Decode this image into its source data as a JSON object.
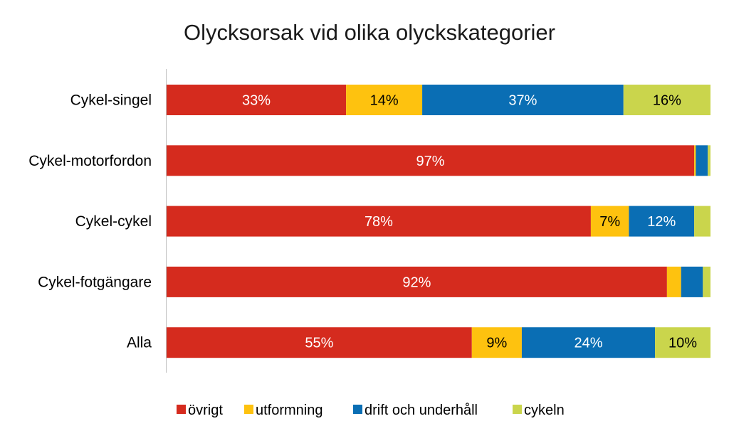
{
  "chart_data": {
    "type": "bar",
    "orientation": "horizontal",
    "stacked": "percent",
    "title": "Olycksorsak vid olika olyckskategorier",
    "xlabel": "",
    "ylabel": "",
    "xlim": [
      0,
      100
    ],
    "grid": false,
    "legend_position": "bottom",
    "categories": [
      "Cykel-singel",
      "Cykel-motorfordon",
      "Cykel-cykel",
      "Cykel-fotgängare",
      "Alla"
    ],
    "series": [
      {
        "name": "övrigt",
        "color": "#d52b1e",
        "values": [
          33,
          97,
          78,
          92,
          55
        ],
        "labels": [
          "33%",
          "97%",
          "78%",
          "92%",
          "55%"
        ]
      },
      {
        "name": "utformning",
        "color": "#fec20f",
        "values": [
          14,
          0.3,
          7,
          2.6,
          9
        ],
        "labels": [
          "14%",
          "",
          "7%",
          "",
          "9%"
        ]
      },
      {
        "name": "drift och underhåll",
        "color": "#0a6eb4",
        "values": [
          37,
          2.2,
          12,
          4,
          24
        ],
        "labels": [
          "37%",
          "",
          "12%",
          "",
          "24%"
        ]
      },
      {
        "name": "cykeln",
        "color": "#cad54c",
        "values": [
          16,
          0.5,
          3,
          1.4,
          10
        ],
        "labels": [
          "16%",
          "",
          "",
          "",
          "10%"
        ]
      }
    ]
  }
}
